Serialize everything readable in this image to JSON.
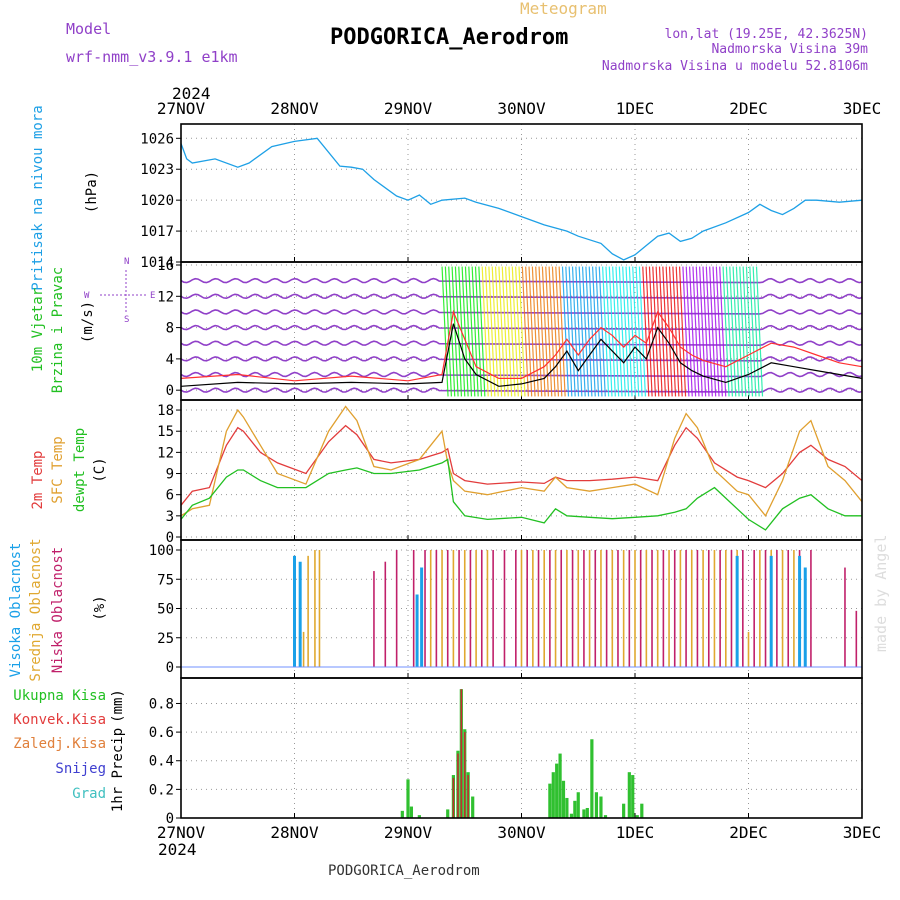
{
  "header": {
    "title": "PODGORICA_Aerodrom",
    "meteogram_label": "Meteogram",
    "model_label": "Model",
    "model_name": "wrf-nmm_v3.9.1  e1km",
    "lonlat": "lon,lat (19.25E, 42.3625N)",
    "elevation": "Nadmorska Visina 39m",
    "model_elevation": "Nadmorska Visina u modelu 52.8106m",
    "footer_title": "PODGORICA_Aerodrom",
    "credit": "made by Angel",
    "year_top": "2024",
    "year_bottom": "2024"
  },
  "colors": {
    "pressure": "#1ea0e6",
    "temp2m": "#e23c3c",
    "sfc": "#e0a030",
    "dew": "#22c022",
    "high": "#1aa0e8",
    "mid": "#e0a830",
    "low": "#c0206a",
    "rain": "#30c030",
    "convective": "#c03030",
    "wind_speed": "#000000",
    "gust": "#ff3030",
    "purple": "#9040c8"
  },
  "chart_data": [
    {
      "type": "line",
      "name": "pressure",
      "x_tick_labels": [
        "27NOV",
        "28NOV",
        "29NOV",
        "30NOV",
        "1DEC",
        "2DEC",
        "3DEC"
      ],
      "ylabel": "Pritisak na nivou mora",
      "unit": "(hPa)",
      "y_ticks": [
        1014,
        1017,
        1020,
        1023,
        1026
      ],
      "ylim": [
        1014,
        1027
      ],
      "x_days": [
        0,
        0.05,
        0.1,
        0.3,
        0.5,
        0.6,
        0.8,
        1.0,
        1.2,
        1.4,
        1.5,
        1.6,
        1.7,
        1.9,
        2.0,
        2.1,
        2.2,
        2.3,
        2.5,
        2.6,
        2.8,
        3.0,
        3.2,
        3.4,
        3.5,
        3.7,
        3.8,
        3.9,
        4.0,
        4.1,
        4.2,
        4.3,
        4.4,
        4.5,
        4.6,
        4.8,
        5.0,
        5.1,
        5.2,
        5.3,
        5.4,
        5.5,
        5.6,
        5.8,
        6.0
      ],
      "values": [
        1025.5,
        1024.0,
        1023.6,
        1024.0,
        1023.2,
        1023.6,
        1025.2,
        1025.7,
        1026.0,
        1023.3,
        1023.2,
        1023.0,
        1022.0,
        1020.4,
        1020.0,
        1020.5,
        1019.6,
        1020.0,
        1020.2,
        1019.8,
        1019.2,
        1018.4,
        1017.6,
        1017.0,
        1016.5,
        1015.8,
        1014.8,
        1014.2,
        1014.7,
        1015.6,
        1016.5,
        1016.8,
        1016.0,
        1016.3,
        1017.0,
        1017.8,
        1018.8,
        1019.6,
        1019.0,
        1018.6,
        1019.2,
        1020.0,
        1020.0,
        1019.8,
        1020.0
      ]
    },
    {
      "type": "line",
      "name": "wind",
      "x_tick_labels": [
        "27NOV",
        "28NOV",
        "29NOV",
        "30NOV",
        "1DEC",
        "2DEC",
        "3DEC"
      ],
      "ylabel": [
        "10m Vjetar",
        "Brzina i Pravac"
      ],
      "unit": "(m/s)",
      "compass": [
        "W",
        "E",
        "N",
        "S"
      ],
      "y_ticks": [
        0,
        4,
        8,
        12,
        16
      ],
      "ylim": [
        -1,
        16
      ],
      "x_days": [
        0,
        0.5,
        1.0,
        1.5,
        2.0,
        2.3,
        2.4,
        2.5,
        2.6,
        2.8,
        3.0,
        3.2,
        3.3,
        3.4,
        3.5,
        3.6,
        3.7,
        3.8,
        3.9,
        4.0,
        4.1,
        4.2,
        4.3,
        4.4,
        4.5,
        4.6,
        4.8,
        5.0,
        5.2,
        5.4,
        5.6,
        5.8,
        6.0
      ],
      "values": [
        0.5,
        1.0,
        0.8,
        1.0,
        0.8,
        1.0,
        8.5,
        4.0,
        2.0,
        0.5,
        0.8,
        1.5,
        3.0,
        5.0,
        2.5,
        4.5,
        6.5,
        5.0,
        3.5,
        5.5,
        4.0,
        8.0,
        6.0,
        3.5,
        2.5,
        1.8,
        1.0,
        2.0,
        3.5,
        3.0,
        2.5,
        2.0,
        1.5
      ],
      "gust": [
        1.5,
        2.0,
        1.2,
        1.8,
        1.2,
        2.0,
        10.0,
        6.5,
        3.0,
        1.5,
        1.5,
        3.0,
        4.5,
        6.5,
        4.5,
        6.5,
        8.0,
        7.0,
        5.5,
        7.0,
        6.0,
        10.0,
        8.0,
        5.5,
        4.5,
        3.8,
        3.0,
        4.5,
        6.0,
        5.5,
        4.5,
        3.5,
        3.0
      ]
    },
    {
      "type": "line",
      "name": "temperature",
      "x_tick_labels": [
        "27NOV",
        "28NOV",
        "29NOV",
        "30NOV",
        "1DEC",
        "2DEC",
        "3DEC"
      ],
      "ylabel": [
        "2m Temp",
        "SFC Temp",
        "dewpt Temp"
      ],
      "unit": "(C)",
      "y_ticks": [
        0,
        3,
        6,
        9,
        12,
        15,
        18
      ],
      "ylim": [
        0,
        19
      ],
      "x_days": [
        0,
        0.1,
        0.25,
        0.4,
        0.5,
        0.55,
        0.7,
        0.85,
        1.1,
        1.3,
        1.45,
        1.55,
        1.7,
        1.85,
        2.1,
        2.3,
        2.35,
        2.4,
        2.5,
        2.7,
        3.0,
        3.2,
        3.3,
        3.4,
        3.6,
        3.8,
        4.0,
        4.2,
        4.35,
        4.45,
        4.55,
        4.7,
        4.9,
        5.0,
        5.15,
        5.3,
        5.45,
        5.55,
        5.7,
        5.85,
        6.0
      ],
      "series": [
        {
          "name": "2m Temp",
          "values": [
            4.5,
            6.5,
            7.0,
            13.0,
            15.5,
            15.0,
            12.0,
            10.5,
            9.0,
            13.5,
            15.8,
            14.5,
            11.0,
            10.5,
            11.0,
            12.0,
            12.5,
            9.0,
            8.0,
            7.5,
            7.8,
            7.6,
            8.5,
            8.0,
            8.0,
            8.2,
            8.5,
            8.0,
            13.0,
            15.5,
            14.0,
            10.5,
            8.5,
            8.0,
            7.0,
            9.0,
            12.0,
            13.0,
            11.0,
            10.0,
            8.0
          ]
        },
        {
          "name": "SFC Temp",
          "values": [
            3.0,
            4.0,
            4.5,
            15.0,
            18.0,
            17.0,
            13.0,
            9.0,
            7.5,
            15.0,
            18.5,
            16.5,
            10.0,
            9.5,
            11.0,
            15.0,
            10.5,
            8.0,
            6.5,
            6.0,
            7.0,
            6.5,
            8.5,
            7.0,
            6.5,
            7.0,
            7.5,
            6.0,
            14.0,
            17.5,
            15.5,
            9.5,
            6.5,
            6.0,
            3.0,
            8.0,
            15.0,
            16.5,
            10.0,
            8.0,
            5.0
          ]
        },
        {
          "name": "dewpt Temp",
          "values": [
            2.5,
            4.5,
            5.5,
            8.5,
            9.5,
            9.5,
            8.0,
            7.0,
            7.0,
            9.0,
            9.5,
            9.8,
            9.0,
            9.0,
            9.5,
            10.5,
            11.0,
            5.0,
            3.0,
            2.5,
            2.8,
            2.0,
            4.0,
            3.0,
            2.8,
            2.6,
            2.8,
            3.0,
            3.5,
            4.0,
            5.5,
            7.0,
            4.0,
            2.5,
            1.0,
            4.0,
            5.5,
            6.0,
            4.0,
            3.0,
            3.0
          ]
        }
      ]
    },
    {
      "type": "bar",
      "name": "cloudiness",
      "x_tick_labels": [
        "27NOV",
        "28NOV",
        "29NOV",
        "30NOV",
        "1DEC",
        "2DEC",
        "3DEC"
      ],
      "ylabel": [
        "Visoka Oblacnost",
        "Srednja Oblacnost",
        "Niska Oblacnost"
      ],
      "unit": "(%)",
      "y_ticks": [
        0,
        25,
        50,
        75,
        100
      ],
      "ylim": [
        0,
        100
      ],
      "series": [
        {
          "name": "Visoka Oblacnost",
          "x_days": [
            1.0,
            1.05,
            2.08,
            2.12,
            4.9,
            5.2,
            5.45,
            5.5
          ],
          "values": [
            95,
            90,
            62,
            85,
            95,
            95,
            95,
            85
          ]
        },
        {
          "name": "Srednja Oblacnost",
          "x_days": [
            1.08,
            1.12,
            1.18,
            1.22,
            2.2,
            2.3,
            2.4,
            2.5,
            2.6,
            2.7,
            3.0,
            3.1,
            3.2,
            3.3,
            3.4,
            3.5,
            3.6,
            3.7,
            3.8,
            3.9,
            4.0,
            4.1,
            4.2,
            4.3,
            4.4,
            4.5,
            4.6,
            4.7,
            4.8,
            4.9,
            5.0,
            5.1,
            5.2,
            5.3,
            5.4,
            5.5
          ],
          "values": [
            30,
            95,
            100,
            100,
            100,
            100,
            100,
            100,
            100,
            100,
            100,
            100,
            100,
            100,
            100,
            100,
            100,
            100,
            100,
            100,
            100,
            100,
            100,
            100,
            100,
            100,
            100,
            100,
            100,
            100,
            30,
            100,
            100,
            100,
            100,
            30
          ]
        },
        {
          "name": "Niska Oblacnost",
          "x_days": [
            1.7,
            1.8,
            1.9,
            2.05,
            2.15,
            2.25,
            2.35,
            2.45,
            2.55,
            2.65,
            2.75,
            2.85,
            2.95,
            3.05,
            3.15,
            3.25,
            3.35,
            3.45,
            3.55,
            3.65,
            3.75,
            3.85,
            3.95,
            4.05,
            4.15,
            4.25,
            4.35,
            4.45,
            4.55,
            4.65,
            4.75,
            4.85,
            4.95,
            5.05,
            5.15,
            5.25,
            5.35,
            5.45,
            5.55,
            5.85,
            5.95
          ],
          "values": [
            82,
            90,
            100,
            100,
            100,
            100,
            100,
            100,
            100,
            100,
            100,
            100,
            100,
            100,
            100,
            100,
            100,
            100,
            100,
            100,
            100,
            100,
            100,
            100,
            100,
            100,
            100,
            100,
            100,
            100,
            100,
            100,
            100,
            100,
            100,
            100,
            100,
            100,
            100,
            85,
            48
          ]
        }
      ]
    },
    {
      "type": "bar",
      "name": "precipitation",
      "x_tick_labels": [
        "27NOV",
        "28NOV",
        "29NOV",
        "30NOV",
        "1DEC",
        "2DEC",
        "3DEC"
      ],
      "legend": [
        "Ukupna Kisa",
        "Konvek.Kisa",
        "Zaledj.Kisa",
        "Snijeg",
        "Grad"
      ],
      "ylabel": "1hr Precip",
      "unit": "(mm)",
      "y_ticks": [
        0,
        0.2,
        0.4,
        0.6,
        0.8
      ],
      "ylim": [
        0,
        0.95
      ],
      "x_days": [
        1.95,
        2.0,
        2.03,
        2.1,
        2.35,
        2.4,
        2.44,
        2.47,
        2.5,
        2.53,
        2.57,
        3.25,
        3.28,
        3.31,
        3.34,
        3.37,
        3.4,
        3.44,
        3.47,
        3.5,
        3.55,
        3.58,
        3.62,
        3.66,
        3.7,
        3.74,
        3.9,
        3.95,
        3.98,
        4.02,
        4.06
      ],
      "values": [
        0.05,
        0.27,
        0.08,
        0.02,
        0.06,
        0.3,
        0.47,
        0.9,
        0.62,
        0.32,
        0.15,
        0.24,
        0.32,
        0.38,
        0.45,
        0.26,
        0.14,
        0.03,
        0.12,
        0.18,
        0.06,
        0.07,
        0.55,
        0.18,
        0.15,
        0.02,
        0.1,
        0.32,
        0.3,
        0.02,
        0.1
      ],
      "convective": [
        0,
        0,
        0,
        0,
        0,
        0.28,
        0.45,
        0.9,
        0.6,
        0.3,
        0,
        0,
        0,
        0,
        0,
        0,
        0,
        0,
        0,
        0,
        0,
        0,
        0,
        0,
        0,
        0,
        0,
        0,
        0,
        0,
        0
      ]
    }
  ]
}
